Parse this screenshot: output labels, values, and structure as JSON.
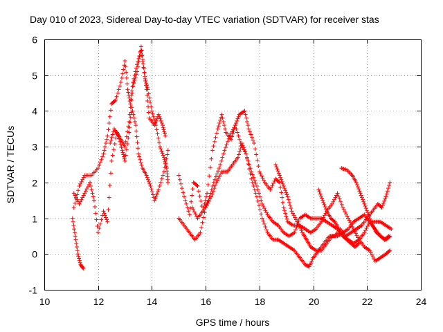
{
  "chart_data": {
    "type": "scatter",
    "title": "Day 010 of 2023, Sidereal Day-to-day VTEC variation (SDTVAR) for receiver stas",
    "xlabel": "GPS time / hours",
    "ylabel": "SDTVAR / TECUs",
    "xlim": [
      10,
      24
    ],
    "ylim": [
      -1,
      6
    ],
    "xticks": [
      10,
      12,
      14,
      16,
      18,
      20,
      22,
      24
    ],
    "xtick_labels": [
      "10",
      "12",
      "14",
      "16",
      "18",
      "20",
      "22",
      "24"
    ],
    "yticks": [
      -1,
      0,
      1,
      2,
      3,
      4,
      5,
      6
    ],
    "ytick_labels": [
      "-1",
      "0",
      "1",
      "2",
      "3",
      "4",
      "5",
      "6"
    ],
    "grid": true,
    "marker": "+",
    "color": "#ff0000",
    "series": [
      {
        "name": "track-1",
        "points": [
          [
            11.05,
            1.0
          ],
          [
            11.15,
            0.5
          ],
          [
            11.25,
            0.0
          ],
          [
            11.35,
            -0.3
          ],
          [
            11.45,
            -0.4
          ]
        ]
      },
      {
        "name": "track-2",
        "points": [
          [
            11.1,
            1.3
          ],
          [
            11.3,
            1.9
          ],
          [
            11.5,
            2.2
          ],
          [
            11.75,
            2.2
          ],
          [
            12.0,
            2.4
          ],
          [
            12.2,
            2.8
          ],
          [
            12.35,
            3.3
          ],
          [
            12.5,
            4.2
          ],
          [
            12.65,
            4.3
          ],
          [
            12.85,
            4.8
          ],
          [
            13.0,
            5.4
          ],
          [
            13.1,
            4.6
          ],
          [
            13.2,
            4.2
          ],
          [
            13.3,
            4.8
          ],
          [
            13.45,
            5.3
          ],
          [
            13.6,
            5.7
          ],
          [
            13.75,
            4.9
          ],
          [
            13.85,
            4.6
          ],
          [
            14.0,
            4.0
          ],
          [
            14.15,
            3.6
          ],
          [
            14.3,
            3.0
          ],
          [
            14.45,
            2.7
          ],
          [
            14.55,
            2.4
          ],
          [
            14.6,
            2.0
          ]
        ]
      },
      {
        "name": "track-3",
        "points": [
          [
            11.1,
            1.7
          ],
          [
            11.3,
            1.4
          ],
          [
            11.5,
            1.7
          ],
          [
            11.7,
            2.0
          ],
          [
            11.85,
            1.5
          ],
          [
            12.0,
            0.6
          ],
          [
            12.2,
            1.2
          ],
          [
            12.35,
            0.9
          ],
          [
            12.5,
            2.6
          ],
          [
            12.7,
            3.4
          ],
          [
            12.85,
            3.2
          ],
          [
            13.0,
            3.0
          ],
          [
            13.15,
            3.7
          ],
          [
            13.3,
            4.7
          ],
          [
            13.45,
            5.1
          ],
          [
            13.6,
            5.8
          ],
          [
            13.7,
            5.2
          ],
          [
            13.8,
            4.6
          ],
          [
            13.9,
            3.8
          ],
          [
            14.1,
            3.6
          ],
          [
            14.25,
            3.9
          ],
          [
            14.4,
            3.6
          ],
          [
            14.5,
            3.3
          ]
        ]
      },
      {
        "name": "track-4",
        "points": [
          [
            12.45,
            3.1
          ],
          [
            12.6,
            3.5
          ],
          [
            12.75,
            3.3
          ],
          [
            12.9,
            2.9
          ],
          [
            13.0,
            2.6
          ],
          [
            13.15,
            3.4
          ],
          [
            13.25,
            4.1
          ],
          [
            13.4,
            3.6
          ],
          [
            13.5,
            2.8
          ],
          [
            13.65,
            2.4
          ],
          [
            13.8,
            2.2
          ],
          [
            13.95,
            1.9
          ],
          [
            14.1,
            1.5
          ],
          [
            14.25,
            1.8
          ],
          [
            14.45,
            2.3
          ],
          [
            14.6,
            2.9
          ]
        ]
      },
      {
        "name": "track-5",
        "points": [
          [
            15.0,
            2.2
          ],
          [
            15.2,
            1.6
          ],
          [
            15.4,
            1.1
          ],
          [
            15.55,
            2.0
          ],
          [
            15.7,
            1.9
          ],
          [
            15.9,
            1.2
          ],
          [
            16.05,
            1.7
          ],
          [
            16.25,
            2.9
          ],
          [
            16.45,
            3.5
          ],
          [
            16.6,
            3.9
          ],
          [
            16.75,
            3.4
          ],
          [
            16.95,
            3.2
          ],
          [
            17.1,
            3.6
          ],
          [
            17.25,
            3.9
          ],
          [
            17.45,
            4.0
          ],
          [
            17.6,
            3.5
          ],
          [
            17.8,
            3.1
          ],
          [
            18.0,
            2.3
          ],
          [
            18.2,
            2.0
          ],
          [
            18.4,
            1.8
          ],
          [
            18.6,
            2.1
          ],
          [
            18.75,
            2.0
          ],
          [
            18.9,
            1.3
          ],
          [
            19.05,
            0.9
          ],
          [
            19.25,
            0.8
          ],
          [
            19.5,
            0.8
          ],
          [
            19.7,
            0.7
          ],
          [
            19.9,
            0.6
          ],
          [
            20.1,
            0.7
          ],
          [
            20.3,
            0.9
          ],
          [
            20.5,
            1.2
          ],
          [
            20.7,
            1.4
          ],
          [
            20.9,
            1.7
          ],
          [
            21.1,
            1.3
          ],
          [
            21.3,
            1.0
          ],
          [
            21.5,
            0.7
          ],
          [
            21.7,
            0.4
          ],
          [
            21.9,
            0.2
          ],
          [
            22.1,
            0.1
          ],
          [
            22.3,
            -0.2
          ],
          [
            22.5,
            -0.1
          ],
          [
            22.7,
            0.0
          ],
          [
            22.85,
            0.1
          ]
        ]
      },
      {
        "name": "track-6",
        "points": [
          [
            15.0,
            1.0
          ],
          [
            15.2,
            0.8
          ],
          [
            15.4,
            0.6
          ],
          [
            15.6,
            0.4
          ],
          [
            15.8,
            0.6
          ],
          [
            16.0,
            1.3
          ],
          [
            16.2,
            1.6
          ],
          [
            16.4,
            2.0
          ],
          [
            16.6,
            2.3
          ],
          [
            16.8,
            2.3
          ],
          [
            17.0,
            2.5
          ],
          [
            17.2,
            2.7
          ],
          [
            17.35,
            3.1
          ],
          [
            17.5,
            2.8
          ],
          [
            17.7,
            2.1
          ],
          [
            17.9,
            1.6
          ],
          [
            18.1,
            1.0
          ],
          [
            18.3,
            0.6
          ],
          [
            18.5,
            0.4
          ],
          [
            18.7,
            0.4
          ],
          [
            18.9,
            0.3
          ],
          [
            19.1,
            0.2
          ],
          [
            19.3,
            0.1
          ],
          [
            19.5,
            -0.1
          ],
          [
            19.7,
            -0.3
          ],
          [
            19.85,
            -0.35
          ],
          [
            20.0,
            -0.1
          ],
          [
            20.2,
            0.1
          ],
          [
            20.4,
            0.3
          ],
          [
            20.6,
            0.5
          ],
          [
            20.8,
            0.5
          ],
          [
            21.0,
            0.7
          ],
          [
            21.2,
            0.5
          ],
          [
            21.4,
            0.6
          ],
          [
            21.6,
            0.7
          ],
          [
            21.8,
            0.8
          ],
          [
            22.0,
            1.0
          ],
          [
            22.2,
            1.2
          ],
          [
            22.4,
            1.4
          ],
          [
            22.55,
            1.3
          ],
          [
            22.7,
            1.6
          ],
          [
            22.85,
            2.0
          ]
        ]
      },
      {
        "name": "track-7",
        "points": [
          [
            15.5,
            1.3
          ],
          [
            15.7,
            1.0
          ],
          [
            15.9,
            1.2
          ],
          [
            16.1,
            1.5
          ],
          [
            16.3,
            2.0
          ],
          [
            16.5,
            2.4
          ],
          [
            16.7,
            2.9
          ],
          [
            16.9,
            3.3
          ],
          [
            17.1,
            3.6
          ],
          [
            17.3,
            3.1
          ],
          [
            17.5,
            2.8
          ],
          [
            17.7,
            2.3
          ],
          [
            17.9,
            1.9
          ],
          [
            18.1,
            1.4
          ],
          [
            18.3,
            1.1
          ],
          [
            18.5,
            0.9
          ],
          [
            18.7,
            0.8
          ],
          [
            18.9,
            0.6
          ],
          [
            19.1,
            0.5
          ],
          [
            19.3,
            0.6
          ],
          [
            19.5,
            1.0
          ],
          [
            19.7,
            1.1
          ],
          [
            19.9,
            1.0
          ],
          [
            20.1,
            1.0
          ],
          [
            20.3,
            1.0
          ],
          [
            20.5,
            0.9
          ],
          [
            20.7,
            0.8
          ],
          [
            20.9,
            0.7
          ],
          [
            21.1,
            0.5
          ],
          [
            21.3,
            0.4
          ],
          [
            21.5,
            0.3
          ],
          [
            21.7,
            0.4
          ],
          [
            21.9,
            0.6
          ],
          [
            22.1,
            0.9
          ],
          [
            22.3,
            0.9
          ],
          [
            22.5,
            0.9
          ],
          [
            22.7,
            0.8
          ],
          [
            22.9,
            0.7
          ]
        ]
      },
      {
        "name": "track-8",
        "points": [
          [
            18.6,
            2.5
          ],
          [
            18.75,
            2.2
          ],
          [
            18.9,
            1.9
          ],
          [
            19.05,
            1.6
          ],
          [
            19.2,
            1.2
          ],
          [
            19.4,
            0.9
          ],
          [
            19.6,
            0.6
          ],
          [
            19.75,
            0.4
          ],
          [
            19.9,
            0.2
          ],
          [
            20.1,
            0.1
          ],
          [
            20.3,
            0.1
          ],
          [
            20.5,
            0.3
          ],
          [
            20.7,
            0.5
          ],
          [
            20.9,
            0.5
          ],
          [
            21.1,
            0.6
          ],
          [
            21.3,
            0.7
          ],
          [
            21.5,
            0.9
          ],
          [
            21.7,
            1.0
          ],
          [
            21.9,
            1.1
          ],
          [
            22.1,
            0.9
          ],
          [
            22.3,
            0.7
          ],
          [
            22.5,
            0.5
          ],
          [
            22.7,
            0.4
          ],
          [
            22.85,
            0.5
          ]
        ]
      },
      {
        "name": "track-9",
        "points": [
          [
            20.2,
            1.8
          ],
          [
            20.35,
            1.5
          ],
          [
            20.5,
            1.2
          ],
          [
            20.65,
            1.0
          ],
          [
            20.8,
            0.9
          ],
          [
            20.95,
            0.7
          ],
          [
            21.1,
            0.5
          ],
          [
            21.25,
            0.4
          ],
          [
            21.4,
            0.3
          ],
          [
            21.55,
            0.2
          ],
          [
            21.7,
            0.3
          ]
        ]
      },
      {
        "name": "track-10",
        "points": [
          [
            21.05,
            2.4
          ],
          [
            21.25,
            2.35
          ],
          [
            21.45,
            2.2
          ],
          [
            21.6,
            2.0
          ],
          [
            21.75,
            1.7
          ],
          [
            21.9,
            1.4
          ],
          [
            22.05,
            1.1
          ],
          [
            22.2,
            0.8
          ],
          [
            22.35,
            0.6
          ],
          [
            22.5,
            0.5
          ],
          [
            22.65,
            0.4
          ],
          [
            22.8,
            0.5
          ]
        ]
      }
    ]
  }
}
